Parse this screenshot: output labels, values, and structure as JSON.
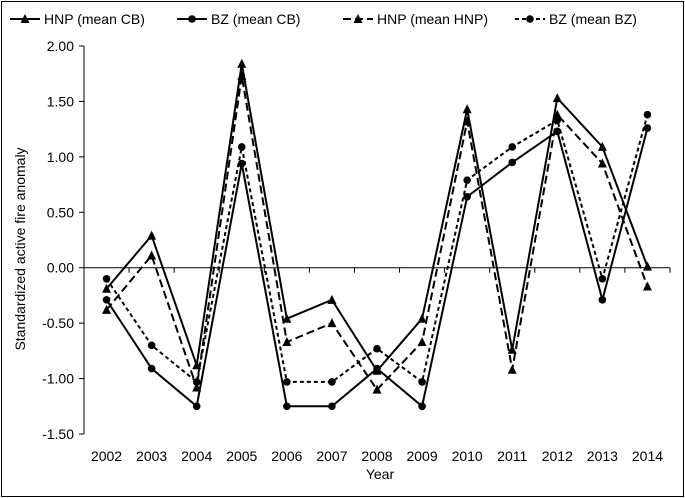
{
  "chart_data": {
    "type": "line",
    "xlabel": "Year",
    "ylabel": "Standardized active fire anomaly",
    "ylim": [
      -1.5,
      2.0
    ],
    "yticks": [
      "2.00",
      "1.50",
      "1.00",
      "0.50",
      "0.00",
      "-0.50",
      "-1.00",
      "-1.50"
    ],
    "ytick_values": [
      2.0,
      1.5,
      1.0,
      0.5,
      0.0,
      -0.5,
      -1.0,
      -1.5
    ],
    "x": [
      "2002",
      "2003",
      "2004",
      "2005",
      "2006",
      "2007",
      "2008",
      "2009",
      "2010",
      "2011",
      "2012",
      "2013",
      "2014"
    ],
    "grid": false,
    "legend_position": "top",
    "series": [
      {
        "name": "HNP (mean CB)",
        "marker": "triangle",
        "dash": "solid",
        "values": [
          -0.19,
          0.29,
          -0.88,
          1.84,
          -0.46,
          -0.29,
          -0.93,
          -0.46,
          1.43,
          -0.74,
          1.53,
          1.09,
          0.01
        ]
      },
      {
        "name": "BZ (mean CB)",
        "marker": "circle",
        "dash": "solid",
        "values": [
          -0.29,
          -0.91,
          -1.25,
          0.94,
          -1.25,
          -1.25,
          -0.91,
          -1.25,
          0.64,
          0.95,
          1.23,
          -0.29,
          1.26
        ]
      },
      {
        "name": "HNP (mean HNP)",
        "marker": "triangle",
        "dash": "long",
        "values": [
          -0.38,
          0.11,
          -1.08,
          1.73,
          -0.67,
          -0.5,
          -1.1,
          -0.67,
          1.32,
          -0.92,
          1.38,
          0.94,
          -0.17
        ]
      },
      {
        "name": "BZ (mean BZ)",
        "marker": "circle",
        "dash": "short",
        "values": [
          -0.1,
          -0.7,
          -1.03,
          1.09,
          -1.03,
          -1.03,
          -0.73,
          -1.03,
          0.79,
          1.09,
          1.33,
          -0.1,
          1.38
        ]
      }
    ]
  }
}
